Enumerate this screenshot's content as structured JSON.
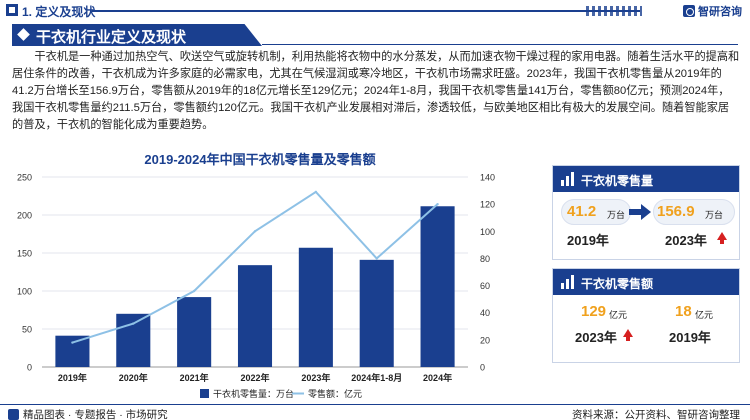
{
  "header": {
    "section_title": "1. 定义及现状",
    "logo_text": "智研咨询"
  },
  "banner": {
    "title": "干衣机行业定义及现状"
  },
  "paragraph": "干衣机是一种通过加热空气、吹送空气或旋转机制，利用热能将衣物中的水分蒸发，从而加速衣物干燥过程的家用电器。随着生活水平的提高和居住条件的改善，干衣机成为许多家庭的必需家电，尤其在气候湿润或寒冷地区，干衣机市场需求旺盛。2023年，我国干衣机零售量从2019年的41.2万台增长至156.9万台，零售额从2019年的18亿元增长至129亿元；2024年1-8月，我国干衣机零售量141万台，零售额80亿元；预测2024年，我国干衣机零售量约211.5万台，零售额约120亿元。我国干衣机产业发展相对滞后，渗透较低，与欧美地区相比有极大的发展空间。随着智能家居的普及，干衣机的智能化成为重要趋势。",
  "chart_data": {
    "type": "bar",
    "title": "2019-2024年中国干衣机零售量及零售额",
    "categories": [
      "2019年",
      "2020年",
      "2021年",
      "2022年",
      "2023年",
      "2024年1-8月",
      "2024年"
    ],
    "series": [
      {
        "name": "干衣机零售量：万台",
        "type": "bar",
        "axis": "left",
        "values": [
          41.2,
          70,
          92,
          134,
          156.9,
          141,
          211.5
        ]
      },
      {
        "name": "零售额：亿元",
        "type": "line",
        "axis": "right",
        "values": [
          18,
          32,
          56,
          100,
          129,
          80,
          120
        ]
      }
    ],
    "y_left": {
      "min": 0,
      "max": 250,
      "ticks": [
        "0",
        "50",
        "100",
        "150",
        "200",
        "250"
      ]
    },
    "y_right": {
      "min": 0,
      "max": 140,
      "ticks": [
        "0",
        "20",
        "40",
        "60",
        "80",
        "100",
        "120",
        "140"
      ]
    },
    "legend_placement": "bottom",
    "colors": {
      "bar": "#1a3f8f",
      "line": "#8ec1e6"
    }
  },
  "card_volume": {
    "title": "干衣机零售量",
    "from_value": "41.2",
    "from_unit": "万台",
    "from_year": "2019年",
    "to_value": "156.9",
    "to_unit": "万台",
    "to_year": "2023年"
  },
  "card_sales": {
    "title": "干衣机零售额",
    "left_value": "129",
    "left_unit": "亿元",
    "left_year": "2023年",
    "right_value": "18",
    "right_unit": "亿元",
    "right_year": "2019年"
  },
  "footer": {
    "left_text": "精品图表 · 专题报告 · 市场研究",
    "source": "资料来源：公开资料、智研咨询整理"
  },
  "colors": {
    "primary": "#1a3f8f",
    "accent_value": "#f0a11e",
    "up_arrow": "#d62020"
  }
}
